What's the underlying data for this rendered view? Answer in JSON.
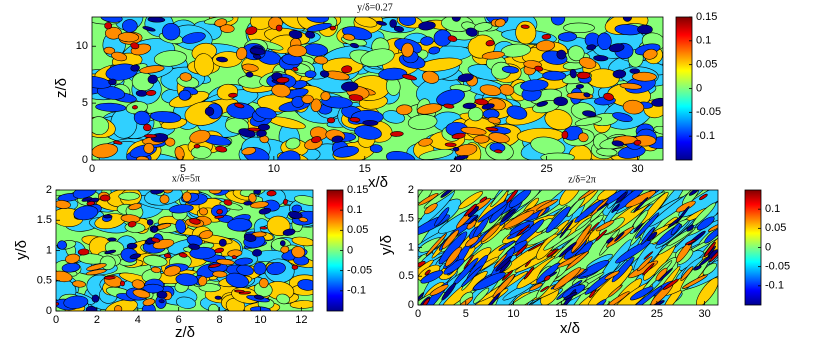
{
  "chart_data": [
    {
      "type": "contour",
      "title": "y/δ=0.27",
      "xlabel": "x/δ",
      "ylabel": "z/δ",
      "xlim": [
        0,
        31.4
      ],
      "xticks": [
        0,
        5,
        10,
        15,
        20,
        25,
        30
      ],
      "ylim": [
        0,
        12.57
      ],
      "yticks": [
        0,
        5,
        10
      ],
      "colorbar": {
        "lim": [
          -0.15,
          0.15
        ],
        "ticks": [
          -0.1,
          -0.05,
          0,
          0.05,
          0.1,
          0.15
        ]
      }
    },
    {
      "type": "contour",
      "title": "x/δ=5π",
      "xlabel": "z/δ",
      "ylabel": "y/δ",
      "xlim": [
        0,
        12.57
      ],
      "xticks": [
        0,
        2,
        4,
        6,
        8,
        10,
        12
      ],
      "ylim": [
        0,
        2
      ],
      "yticks": [
        0,
        0.5,
        1,
        1.5,
        2
      ],
      "colorbar": {
        "lim": [
          -0.15,
          0.15
        ],
        "ticks": [
          -0.1,
          -0.05,
          0,
          0.05,
          0.1,
          0.15
        ]
      }
    },
    {
      "type": "contour",
      "title": "z/δ=2π",
      "xlabel": "x/δ",
      "ylabel": "y/δ",
      "xlim": [
        0,
        31.4
      ],
      "xticks": [
        0,
        5,
        10,
        15,
        20,
        25,
        30
      ],
      "ylim": [
        0,
        2
      ],
      "yticks": [
        0,
        0.5,
        1,
        1.5,
        2
      ],
      "colorbar": {
        "lim": [
          -0.15,
          0.15
        ],
        "ticks": [
          -0.1,
          -0.05,
          0,
          0.05,
          0.1
        ]
      }
    }
  ]
}
